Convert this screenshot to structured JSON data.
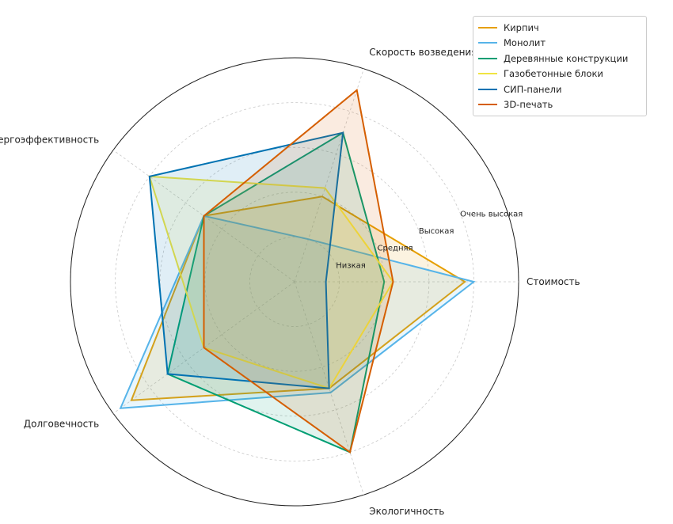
{
  "chart_data": {
    "type": "radar",
    "axes": [
      "Стоимость",
      "Скорость возведения",
      "Энергоэффективность",
      "Долговечность",
      "Экологичность"
    ],
    "levels": [
      "Низкая",
      "Средняя",
      "Высокая",
      "Очень высокая"
    ],
    "rmax": 5,
    "series": [
      {
        "name": "Кирпич",
        "color": "#E69F00",
        "values": [
          3.8,
          2,
          2.5,
          4.5,
          2.5
        ]
      },
      {
        "name": "Монолит",
        "color": "#56B4E9",
        "values": [
          4,
          1,
          2.5,
          4.8,
          2.6
        ]
      },
      {
        "name": "Деревянные конструкции",
        "color": "#009E73",
        "values": [
          2,
          3.5,
          2.5,
          3.5,
          4
        ]
      },
      {
        "name": "Газобетонные блоки",
        "color": "#F0E442",
        "values": [
          2.2,
          2.2,
          4,
          2.5,
          2.5
        ]
      },
      {
        "name": "СИП-панели",
        "color": "#0072B2",
        "values": [
          0.7,
          3.5,
          4,
          3.5,
          2.5
        ]
      },
      {
        "name": "3D-печать",
        "color": "#D55E00",
        "values": [
          2.2,
          4.5,
          2.5,
          2.5,
          4
        ]
      }
    ]
  }
}
